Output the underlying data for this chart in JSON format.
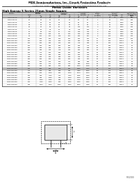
{
  "title_line1": "MDE Semiconductors, Inc. Circuit Protection Products",
  "title_line2": "75 Orville Camino, Unit 114, La Verne, CA  (626) 91750  Tel: 760-595-0000  Fax: 760-595-001",
  "title_line3": "1-(626)-4457  Email: sales@mdesemiconductor.com  Web: www.mdesemiconductor.com",
  "subtitle": "Metal Oxide Varistors",
  "section_title": "High Energy S Series 25mm Single Square",
  "rows": [
    [
      "MDE-25S14K",
      "14",
      "22",
      "28",
      "18",
      "28",
      "36",
      "38",
      "1",
      "25",
      "1200",
      "470"
    ],
    [
      "MDE-25S20K",
      "20",
      "30",
      "40",
      "25",
      "40",
      "50",
      "52",
      "1",
      "40",
      "2500",
      "320"
    ],
    [
      "MDE-25S27K",
      "27",
      "40",
      "54",
      "34",
      "54",
      "66",
      "69",
      "1",
      "50",
      "2500",
      "280"
    ],
    [
      "MDE-25S33K",
      "33",
      "49",
      "66",
      "42",
      "66",
      "82",
      "85",
      "3",
      "60",
      "3500",
      "240"
    ],
    [
      "MDE-25S40K",
      "40",
      "60",
      "80",
      "50",
      "82",
      "100",
      "102",
      "3",
      "70",
      "4500",
      "200"
    ],
    [
      "MDE-25S47K",
      "47",
      "70",
      "94",
      "60",
      "94",
      "115",
      "120",
      "3",
      "80",
      "6000",
      "185"
    ],
    [
      "MDE-25S56K",
      "56",
      "85",
      "112",
      "72",
      "112",
      "135",
      "140",
      "5",
      "100",
      "6000",
      "160"
    ],
    [
      "MDE-25S68K",
      "68",
      "100",
      "136",
      "85",
      "136",
      "165",
      "168",
      "5",
      "130",
      "8000",
      "140"
    ],
    [
      "MDE-25S82K",
      "82",
      "121",
      "164",
      "105",
      "164",
      "200",
      "207",
      "5",
      "150",
      "8000",
      "120"
    ],
    [
      "MDE-25S100K",
      "100",
      "150",
      "200",
      "130",
      "200",
      "250",
      "264",
      "10",
      "200",
      "10000",
      "100"
    ],
    [
      "MDE-25S120K",
      "120",
      "180",
      "240",
      "150",
      "240",
      "300",
      "316",
      "10",
      "220",
      "10000",
      "90"
    ],
    [
      "MDE-25S150K",
      "150",
      "220",
      "300",
      "190",
      "300",
      "375",
      "395",
      "15",
      "250",
      "12000",
      "80"
    ],
    [
      "MDE-25S180K",
      "180",
      "264",
      "360",
      "230",
      "360",
      "455",
      "470",
      "15",
      "300",
      "12000",
      "70"
    ],
    [
      "MDE-25S200K",
      "200",
      "300",
      "400",
      "250",
      "400",
      "510",
      "528",
      "15",
      "300",
      "12000",
      "65"
    ],
    [
      "MDE-25S220K",
      "220",
      "330",
      "440",
      "275",
      "440",
      "560",
      "582",
      "20",
      "320",
      "15000",
      "60"
    ],
    [
      "MDE-25S250K",
      "250",
      "370",
      "500",
      "320",
      "510",
      "640",
      "660",
      "20",
      "360",
      "15000",
      "55"
    ],
    [
      "MDE-25S275K",
      "275",
      "410",
      "550",
      "350",
      "550",
      "700",
      "726",
      "20",
      "360",
      "15000",
      "50"
    ],
    [
      "MDE-25S300K",
      "300",
      "460",
      "600",
      "385",
      "615",
      "745",
      "792",
      "25",
      "400",
      "15000",
      "47"
    ],
    [
      "MDE-25S320K",
      "320",
      "480",
      "640",
      "420",
      "650",
      "820",
      "852",
      "25",
      "450",
      "15000",
      "44"
    ],
    [
      "MDE-25S350K",
      "350",
      "510",
      "700",
      "460",
      "710",
      "895",
      "936",
      "30",
      "480",
      "18000",
      "40"
    ],
    [
      "MDE-25S385K",
      "385",
      "560",
      "770",
      "510",
      "775",
      "980",
      "1026",
      "30",
      "510",
      "18000",
      "38"
    ],
    [
      "MDE-25S420K",
      "420",
      "620",
      "840",
      "550",
      "840",
      "1060",
      "1098",
      "35",
      "540",
      "20000",
      "35"
    ],
    [
      "MDE-25S431K",
      "430",
      "640",
      "860",
      "560",
      "860",
      "1080",
      "1120",
      "35",
      "560",
      "20000",
      "33"
    ],
    [
      "MDE-25S470K",
      "470",
      "700",
      "940",
      "615",
      "940",
      "1180",
      "1232",
      "35",
      "570",
      "20000",
      "32"
    ],
    [
      "MDE-25S510K",
      "510",
      "760",
      "1020",
      "650",
      "1020",
      "1270",
      "1320",
      "40",
      "600",
      "20000",
      "30"
    ],
    [
      "MDE-25S550K",
      "550",
      "820",
      "1100",
      "710",
      "1100",
      "1355",
      "1408",
      "40",
      "650",
      "20000",
      "28"
    ],
    [
      "MDE-25S625K",
      "625",
      "940",
      "1250",
      "825",
      "1300",
      "1550",
      "1650",
      "45",
      "700",
      "20000",
      "25"
    ],
    [
      "MDE-25S680K",
      "680",
      "1000",
      "1360",
      "895",
      "1420",
      "1700",
      "1760",
      "45",
      "700",
      "20000",
      "23"
    ],
    [
      "MDE-25S750K",
      "750",
      "1130",
      "1500",
      "960",
      "1600",
      "1860",
      "1980",
      "50",
      "750",
      "20000",
      "21"
    ],
    [
      "MDE-25S820K",
      "820",
      "1240",
      "1640",
      "1050",
      "1800",
      "2040",
      "2168",
      "50",
      "800",
      "20000",
      "20"
    ]
  ],
  "highlight_row": 22,
  "bg_color": "#ffffff",
  "table_header_bg": "#cccccc",
  "highlight_color": "#bbbbbb",
  "part_number_code": "FE02000",
  "diagram_labels": {
    "w_label": "W",
    "t_label": "T",
    "ls_label": "LS",
    "d_label": "D"
  }
}
